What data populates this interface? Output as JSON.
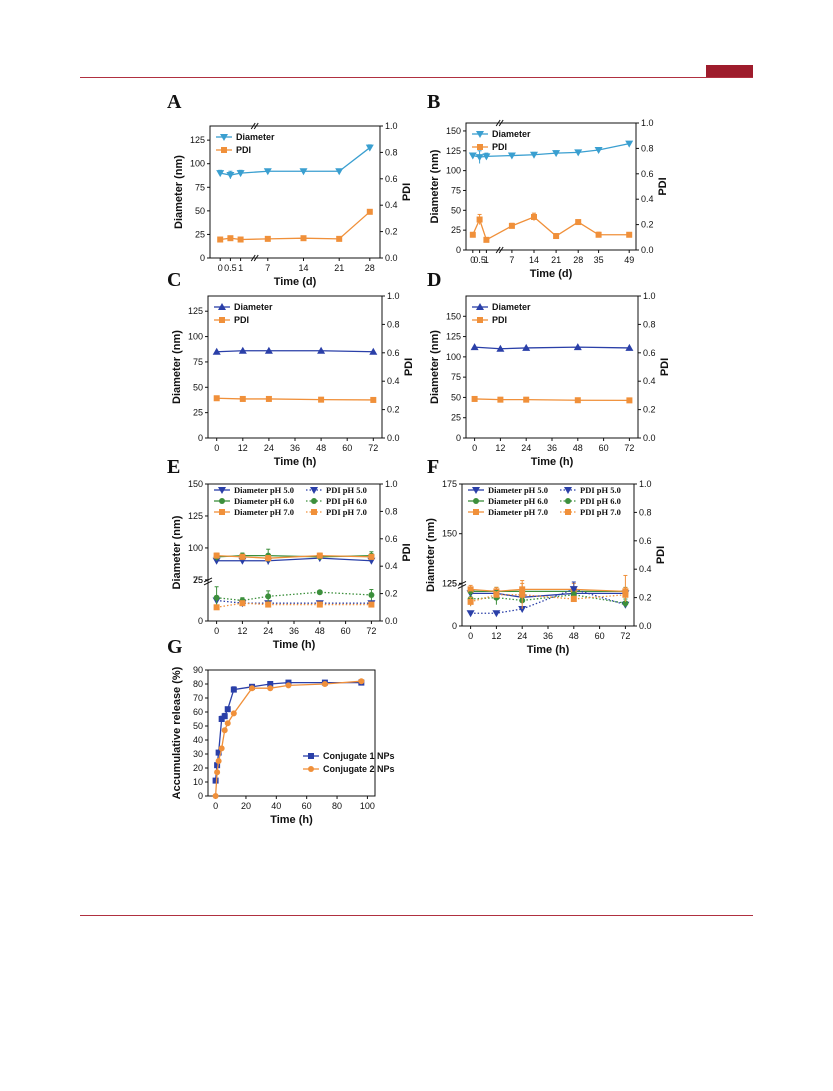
{
  "page": {
    "accent": "#9e1c2c"
  },
  "chart_data": [
    {
      "id": "A",
      "letter": "A",
      "type": "line",
      "xlabel": "Time (d)",
      "ylabel": "Diameter (nm)",
      "y2label": "PDI",
      "xticks": [
        "0",
        "0.5",
        "1",
        "7",
        "14",
        "21",
        "28"
      ],
      "ylim": [
        0,
        140
      ],
      "yticks": [
        0,
        25,
        50,
        75,
        100,
        125
      ],
      "y2lim": [
        0,
        1.0
      ],
      "y2ticks": [
        "0.0",
        "0.2",
        "0.4",
        "0.6",
        "0.8",
        "1.0"
      ],
      "legend_position": "top-left",
      "series": [
        {
          "name": "Diameter",
          "axis": "left",
          "color": "#3a9fd0",
          "marker": "tri-down",
          "dash": false,
          "x": [
            0,
            0.5,
            1,
            7,
            14,
            21,
            28
          ],
          "values": [
            90,
            88,
            90,
            92,
            92,
            92,
            117
          ],
          "err": [
            3,
            4,
            3,
            1,
            1,
            1,
            3
          ]
        },
        {
          "name": "PDI",
          "axis": "right",
          "color": "#f0903a",
          "marker": "square",
          "dash": false,
          "x": [
            0,
            0.5,
            1,
            7,
            14,
            21,
            28
          ],
          "values": [
            0.14,
            0.15,
            0.14,
            0.145,
            0.15,
            0.145,
            0.35
          ],
          "err": [
            0,
            0.01,
            0,
            0,
            0.01,
            0,
            0
          ]
        }
      ]
    },
    {
      "id": "B",
      "letter": "B",
      "type": "line",
      "xlabel": "Time (d)",
      "ylabel": "Diameter (nm)",
      "y2label": "PDI",
      "xticks": [
        "0",
        "0.5",
        "1",
        "7",
        "14",
        "21",
        "28",
        "35",
        "49"
      ],
      "ylim": [
        0,
        160
      ],
      "yticks": [
        0,
        25,
        50,
        75,
        100,
        125,
        150
      ],
      "y2lim": [
        0,
        1.0
      ],
      "y2ticks": [
        "0.0",
        "0.2",
        "0.4",
        "0.6",
        "0.8",
        "1.0"
      ],
      "legend_position": "top-left",
      "series": [
        {
          "name": "Diameter",
          "axis": "left",
          "color": "#3a9fd0",
          "marker": "tri-down",
          "dash": false,
          "x": [
            0,
            0.5,
            1,
            7,
            14,
            21,
            28,
            35,
            49
          ],
          "values": [
            119,
            117,
            118,
            119,
            120,
            122,
            123,
            126,
            134
          ],
          "err": [
            3,
            8,
            4,
            2,
            3,
            3,
            2,
            2,
            1
          ]
        },
        {
          "name": "PDI",
          "axis": "right",
          "color": "#f0903a",
          "marker": "square",
          "dash": false,
          "x": [
            0,
            0.5,
            1,
            7,
            14,
            21,
            28,
            35,
            49
          ],
          "values": [
            0.12,
            0.24,
            0.08,
            0.19,
            0.26,
            0.11,
            0.22,
            0.12,
            0.12
          ],
          "err": [
            0,
            0.04,
            0,
            0.02,
            0.03,
            0,
            0.01,
            0.02,
            0
          ]
        }
      ]
    },
    {
      "id": "C",
      "letter": "C",
      "type": "line",
      "xlabel": "Time (h)",
      "ylabel": "Diameter (nm)",
      "y2label": "PDI",
      "xticks": [
        "0",
        "12",
        "24",
        "36",
        "48",
        "60",
        "72"
      ],
      "ylim": [
        0,
        140
      ],
      "yticks": [
        0,
        25,
        50,
        75,
        100,
        125
      ],
      "y2lim": [
        0,
        1.0
      ],
      "y2ticks": [
        "0.0",
        "0.2",
        "0.4",
        "0.6",
        "0.8",
        "1.0"
      ],
      "legend_position": "top-left",
      "series": [
        {
          "name": "Diameter",
          "axis": "left",
          "color": "#2a3fa8",
          "marker": "tri-up",
          "dash": false,
          "x": [
            0,
            12,
            24,
            48,
            72
          ],
          "values": [
            85,
            86,
            86,
            86,
            85
          ],
          "err": [
            0,
            0,
            0,
            0,
            0
          ]
        },
        {
          "name": "PDI",
          "axis": "right",
          "color": "#f0903a",
          "marker": "square",
          "dash": false,
          "x": [
            0,
            12,
            24,
            48,
            72
          ],
          "values": [
            0.28,
            0.275,
            0.275,
            0.27,
            0.268
          ],
          "err": [
            0,
            0,
            0,
            0,
            0
          ]
        }
      ]
    },
    {
      "id": "D",
      "letter": "D",
      "type": "line",
      "xlabel": "Time (h)",
      "ylabel": "Diameter (nm)",
      "y2label": "PDI",
      "xticks": [
        "0",
        "12",
        "24",
        "36",
        "48",
        "60",
        "72"
      ],
      "ylim": [
        0,
        175
      ],
      "yticks": [
        0,
        25,
        50,
        75,
        100,
        125,
        150
      ],
      "y2lim": [
        0,
        1.0
      ],
      "y2ticks": [
        "0.0",
        "0.2",
        "0.4",
        "0.6",
        "0.8",
        "1.0"
      ],
      "legend_position": "top-left",
      "series": [
        {
          "name": "Diameter",
          "axis": "left",
          "color": "#2a3fa8",
          "marker": "tri-up",
          "dash": false,
          "x": [
            0,
            12,
            24,
            48,
            72
          ],
          "values": [
            112,
            110,
            111,
            112,
            111
          ],
          "err": [
            0,
            0,
            0,
            0,
            0
          ]
        },
        {
          "name": "PDI",
          "axis": "right",
          "color": "#f0903a",
          "marker": "square",
          "dash": false,
          "x": [
            0,
            12,
            24,
            48,
            72
          ],
          "values": [
            0.275,
            0.27,
            0.27,
            0.266,
            0.265
          ],
          "err": [
            0,
            0,
            0,
            0,
            0
          ]
        }
      ]
    },
    {
      "id": "E",
      "letter": "E",
      "type": "line",
      "xlabel": "Time (h)",
      "ylabel": "Diameter (nm)",
      "y2label": "PDI",
      "xticks": [
        "0",
        "12",
        "24",
        "36",
        "48",
        "60",
        "72"
      ],
      "ylim": [
        0,
        150
      ],
      "yticks": [
        0,
        25,
        75,
        100,
        125,
        150
      ],
      "y2lim": [
        0,
        1.0
      ],
      "y2ticks": [
        "0.0",
        "0.2",
        "0.4",
        "0.6",
        "0.8",
        "1.0"
      ],
      "legend_position": "top",
      "series": [
        {
          "name": "Diameter pH 5.0",
          "axis": "left",
          "color": "#2a3fa8",
          "marker": "tri-down",
          "dash": false,
          "x": [
            0,
            12,
            24,
            48,
            72
          ],
          "values": [
            90,
            90,
            90,
            92,
            90
          ],
          "err": [
            2,
            2,
            3,
            2,
            2
          ]
        },
        {
          "name": "Diameter pH 6.0",
          "axis": "left",
          "color": "#3c8f3c",
          "marker": "circle",
          "dash": false,
          "x": [
            0,
            12,
            24,
            48,
            72
          ],
          "values": [
            93,
            94,
            94,
            93,
            94
          ],
          "err": [
            3,
            2,
            5,
            2,
            3
          ]
        },
        {
          "name": "Diameter pH 7.0",
          "axis": "left",
          "color": "#f0903a",
          "marker": "square",
          "dash": false,
          "x": [
            0,
            12,
            24,
            48,
            72
          ],
          "values": [
            94,
            93,
            92,
            94,
            93
          ],
          "err": [
            2,
            2,
            2,
            2,
            2
          ]
        },
        {
          "name": "PDI pH 5.0",
          "axis": "right",
          "color": "#2a3fa8",
          "marker": "tri-down",
          "dash": true,
          "x": [
            0,
            12,
            24,
            48,
            72
          ],
          "values": [
            0.15,
            0.13,
            0.13,
            0.13,
            0.13
          ],
          "err": [
            0.01,
            0.01,
            0.01,
            0.01,
            0.01
          ]
        },
        {
          "name": "PDI pH 6.0",
          "axis": "right",
          "color": "#3c8f3c",
          "marker": "circle",
          "dash": true,
          "x": [
            0,
            12,
            24,
            48,
            72
          ],
          "values": [
            0.17,
            0.15,
            0.18,
            0.21,
            0.19
          ],
          "err": [
            0.08,
            0.02,
            0.04,
            0.01,
            0.04
          ]
        },
        {
          "name": "PDI pH 7.0",
          "axis": "right",
          "color": "#f0903a",
          "marker": "square",
          "dash": true,
          "x": [
            0,
            12,
            24,
            48,
            72
          ],
          "values": [
            0.1,
            0.13,
            0.12,
            0.12,
            0.12
          ],
          "err": [
            0.01,
            0.01,
            0.01,
            0.01,
            0.01
          ]
        }
      ]
    },
    {
      "id": "F",
      "letter": "F",
      "type": "line",
      "xlabel": "Time (h)",
      "ylabel": "Diameter (nm)",
      "y2label": "PDI",
      "xticks": [
        "0",
        "12",
        "24",
        "36",
        "48",
        "60",
        "72"
      ],
      "ylim": [
        0,
        175
      ],
      "yticks": [
        0,
        25,
        125,
        150,
        175
      ],
      "y2lim": [
        0,
        1.0
      ],
      "y2ticks": [
        "0.0",
        "0.2",
        "0.4",
        "0.6",
        "0.8",
        "1.0"
      ],
      "legend_position": "top",
      "series": [
        {
          "name": "Diameter pH 5.0",
          "axis": "left",
          "color": "#2a3fa8",
          "marker": "tri-down",
          "dash": false,
          "x": [
            0,
            12,
            24,
            48,
            72
          ],
          "values": [
            120,
            120,
            118,
            120,
            120
          ],
          "err": [
            2,
            2,
            3,
            2,
            2
          ]
        },
        {
          "name": "Diameter pH 6.0",
          "axis": "left",
          "color": "#3c8f3c",
          "marker": "circle",
          "dash": false,
          "x": [
            0,
            12,
            24,
            48,
            72
          ],
          "values": [
            121,
            121,
            121,
            121,
            121
          ],
          "err": [
            2,
            2,
            2,
            2,
            2
          ]
        },
        {
          "name": "Diameter pH 7.0",
          "axis": "left",
          "color": "#f0903a",
          "marker": "square",
          "dash": false,
          "x": [
            0,
            12,
            24,
            48,
            72
          ],
          "values": [
            122,
            121,
            122,
            122,
            121
          ],
          "err": [
            2,
            2,
            3,
            3,
            8
          ]
        },
        {
          "name": "PDI pH 5.0",
          "axis": "right",
          "color": "#2a3fa8",
          "marker": "tri-down",
          "dash": true,
          "x": [
            0,
            12,
            24,
            48,
            72
          ],
          "values": [
            0.09,
            0.09,
            0.12,
            0.26,
            0.15
          ],
          "err": [
            0.01,
            0.01,
            0.01,
            0.05,
            0.02
          ]
        },
        {
          "name": "PDI pH 6.0",
          "axis": "right",
          "color": "#3c8f3c",
          "marker": "circle",
          "dash": true,
          "x": [
            0,
            12,
            24,
            48,
            72
          ],
          "values": [
            0.19,
            0.2,
            0.18,
            0.22,
            0.16
          ],
          "err": [
            0.05,
            0.05,
            0.02,
            0.02,
            0.03
          ]
        },
        {
          "name": "PDI pH 7.0",
          "axis": "right",
          "color": "#f0903a",
          "marker": "square",
          "dash": true,
          "x": [
            0,
            12,
            24,
            48,
            72
          ],
          "values": [
            0.17,
            0.22,
            0.22,
            0.19,
            0.22
          ],
          "err": [
            0.03,
            0.02,
            0.1,
            0.02,
            0.05
          ]
        }
      ]
    },
    {
      "id": "G",
      "letter": "G",
      "type": "line",
      "xlabel": "Time (h)",
      "ylabel": "Accumulative release (%)",
      "xlim": [
        -5,
        105
      ],
      "xtick_values": [
        0,
        20,
        40,
        60,
        80,
        100
      ],
      "ylim": [
        0,
        90
      ],
      "yticks": [
        0,
        10,
        20,
        30,
        40,
        50,
        60,
        70,
        80,
        90
      ],
      "legend_position": "right",
      "series": [
        {
          "name": "Conjugate 1 NPs",
          "color": "#2a3fa8",
          "marker": "square",
          "dash": false,
          "x": [
            0,
            1,
            2,
            4,
            6,
            8,
            12,
            24,
            36,
            48,
            72,
            96
          ],
          "values": [
            11,
            22,
            31,
            55,
            57,
            62,
            76,
            78,
            80,
            81,
            81,
            81
          ],
          "err": [
            1,
            1,
            1,
            2,
            2,
            1,
            2,
            1,
            1,
            1,
            1,
            1
          ]
        },
        {
          "name": "Conjugate 2 NPs",
          "color": "#f0903a",
          "marker": "circle",
          "dash": false,
          "x": [
            0,
            1,
            2,
            4,
            6,
            8,
            12,
            24,
            36,
            48,
            72,
            96
          ],
          "values": [
            0,
            17,
            25,
            34,
            47,
            52,
            59,
            77,
            77,
            79,
            80,
            82
          ],
          "err": [
            0,
            1,
            1,
            1,
            1,
            1,
            1,
            1,
            1,
            1,
            1,
            1
          ]
        }
      ]
    }
  ]
}
